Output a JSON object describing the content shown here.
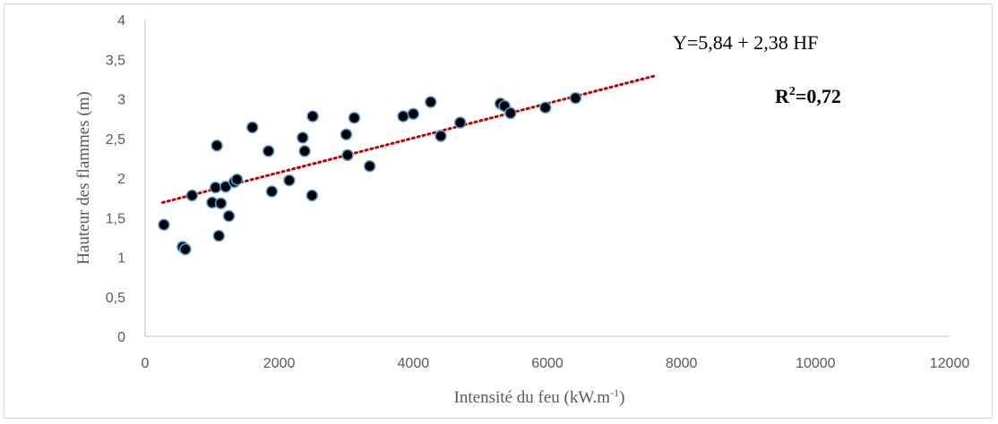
{
  "chart_data": {
    "type": "scatter",
    "title": "",
    "xlabel": "Intensité du feu (kW.m",
    "xlabel_sup": "-1",
    "xlabel_end": ")",
    "ylabel": "Hauteur des flammes (m)",
    "xlim": [
      0,
      12000
    ],
    "ylim": [
      0,
      4
    ],
    "x_ticks": [
      0,
      2000,
      4000,
      6000,
      8000,
      10000,
      12000
    ],
    "y_ticks": [
      "0",
      "0,5",
      "1",
      "1,5",
      "2",
      "2,5",
      "3",
      "3,5",
      "4"
    ],
    "y_tick_values": [
      0,
      0.5,
      1,
      1.5,
      2,
      2.5,
      3,
      3.5,
      4
    ],
    "grid": false,
    "legend": "none",
    "marker_color": "#000000",
    "marker_edge": "#5b9bd5",
    "trendline_color": "#c00000",
    "points": [
      {
        "x": 280,
        "y": 1.41
      },
      {
        "x": 560,
        "y": 1.13
      },
      {
        "x": 600,
        "y": 1.1
      },
      {
        "x": 700,
        "y": 1.78
      },
      {
        "x": 1000,
        "y": 1.69
      },
      {
        "x": 1050,
        "y": 1.88
      },
      {
        "x": 1070,
        "y": 2.41
      },
      {
        "x": 1100,
        "y": 1.27
      },
      {
        "x": 1130,
        "y": 1.68
      },
      {
        "x": 1200,
        "y": 1.89
      },
      {
        "x": 1250,
        "y": 1.52
      },
      {
        "x": 1330,
        "y": 1.95
      },
      {
        "x": 1370,
        "y": 1.98
      },
      {
        "x": 1600,
        "y": 2.64
      },
      {
        "x": 1840,
        "y": 2.34
      },
      {
        "x": 1890,
        "y": 1.83
      },
      {
        "x": 2150,
        "y": 1.97
      },
      {
        "x": 2350,
        "y": 2.51
      },
      {
        "x": 2380,
        "y": 2.34
      },
      {
        "x": 2490,
        "y": 1.78
      },
      {
        "x": 2500,
        "y": 2.78
      },
      {
        "x": 3000,
        "y": 2.55
      },
      {
        "x": 3020,
        "y": 2.29
      },
      {
        "x": 3120,
        "y": 2.76
      },
      {
        "x": 3350,
        "y": 2.15
      },
      {
        "x": 3850,
        "y": 2.78
      },
      {
        "x": 4000,
        "y": 2.81
      },
      {
        "x": 4260,
        "y": 2.96
      },
      {
        "x": 4410,
        "y": 2.53
      },
      {
        "x": 4700,
        "y": 2.7
      },
      {
        "x": 5300,
        "y": 2.94
      },
      {
        "x": 5360,
        "y": 2.91
      },
      {
        "x": 5450,
        "y": 2.82
      },
      {
        "x": 5970,
        "y": 2.89
      },
      {
        "x": 6420,
        "y": 3.01
      }
    ],
    "trendline": {
      "x": [
        260,
        7600
      ],
      "y": [
        1.69,
        3.29
      ]
    },
    "annotations": {
      "equation": "Y=5,84 + 2,38 HF",
      "r2_label": "R",
      "r2_sup": "2",
      "r2_value": "=0,72"
    }
  }
}
